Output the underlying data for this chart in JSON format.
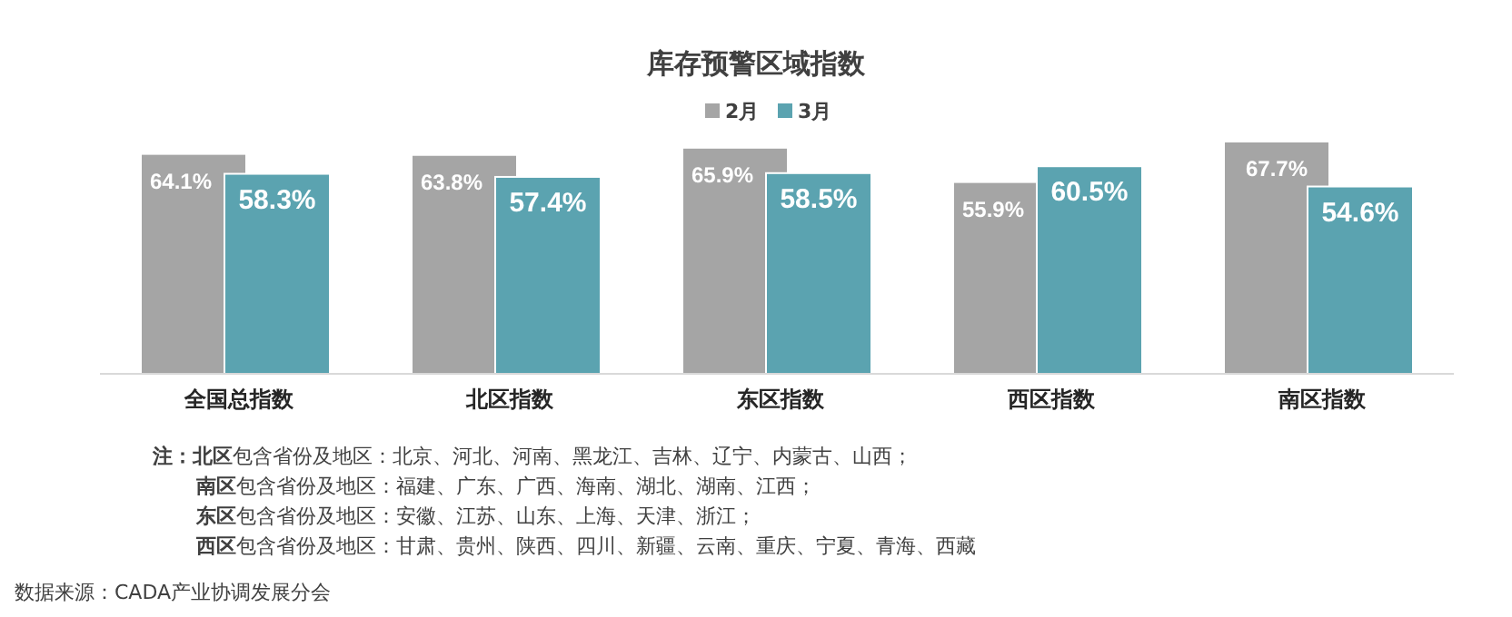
{
  "chart_data": {
    "type": "bar",
    "title": "库存预警区域指数",
    "categories": [
      "全国总指数",
      "北区指数",
      "东区指数",
      "西区指数",
      "南区指数"
    ],
    "series": [
      {
        "name": "2月",
        "color": "#a5a5a5",
        "values": [
          64.1,
          63.8,
          65.9,
          55.9,
          67.7
        ],
        "value_labels": [
          "64.1%",
          "63.8%",
          "65.9%",
          "55.9%",
          "67.7%"
        ]
      },
      {
        "name": "3月",
        "color": "#5ba3b0",
        "values": [
          58.3,
          57.4,
          58.5,
          60.5,
          54.6
        ],
        "value_labels": [
          "58.3%",
          "57.4%",
          "58.5%",
          "60.5%",
          "54.6%"
        ]
      }
    ],
    "legend": "top",
    "annotations": [
      "**注：北区**包含省份及地区：北京、河北、河南、黑龙江、吉林、辽宁、内蒙古、山西；",
      "**南区**包含省份及地区：福建、广东、广西、海南、湖北、湖南、江西；",
      "**东区**包含省份及地区：安徽、江苏、山东、上海、天津、浙江；",
      "**西区**包含省份及地区：甘肃、贵州、陕西、四川、新疆、云南、重庆、宁夏、青海、西藏",
      "数据来源：CADA产业协调发展分会"
    ]
  }
}
